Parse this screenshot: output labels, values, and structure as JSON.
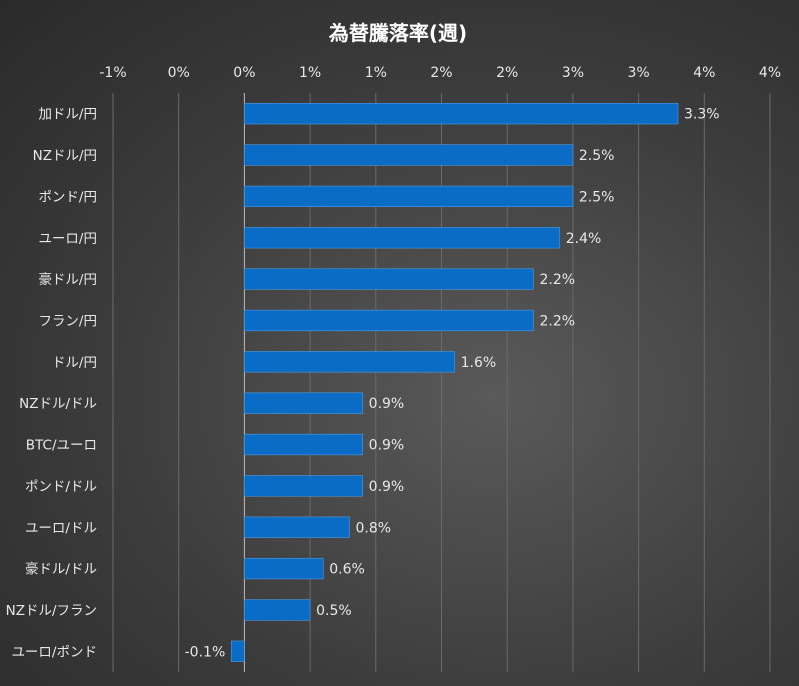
{
  "chart_data": {
    "type": "bar",
    "orientation": "horizontal",
    "title": "為替騰落率(週)",
    "categories": [
      "加ドル/円",
      "NZドル/円",
      "ポンド/円",
      "ユーロ/円",
      "豪ドル/円",
      "フラン/円",
      "ドル/円",
      "NZドル/ドル",
      "BTC/ユーロ",
      "ポンド/ドル",
      "ユーロ/ドル",
      "豪ドル/ドル",
      "NZドル/フラン",
      "ユーロ/ポンド"
    ],
    "values": [
      3.3,
      2.5,
      2.5,
      2.4,
      2.2,
      2.2,
      1.6,
      0.9,
      0.9,
      0.9,
      0.8,
      0.6,
      0.5,
      -0.1
    ],
    "value_labels": [
      "3.3%",
      "2.5%",
      "2.5%",
      "2.4%",
      "2.2%",
      "2.2%",
      "1.6%",
      "0.9%",
      "0.9%",
      "0.9%",
      "0.8%",
      "0.6%",
      "0.5%",
      "-0.1%"
    ],
    "xlim": [
      -1,
      4
    ],
    "x_ticks": [
      -1,
      -0.5,
      0,
      0.5,
      1,
      1.5,
      2,
      2.5,
      3,
      3.5,
      4
    ],
    "x_tick_labels": [
      "-1%",
      "0%",
      "0%",
      "1%",
      "1%",
      "2%",
      "2%",
      "3%",
      "3%",
      "4%",
      "4%"
    ],
    "x_axis_position": "top",
    "grid": true,
    "legend": "none",
    "bar_color": "#0a6cc4"
  }
}
